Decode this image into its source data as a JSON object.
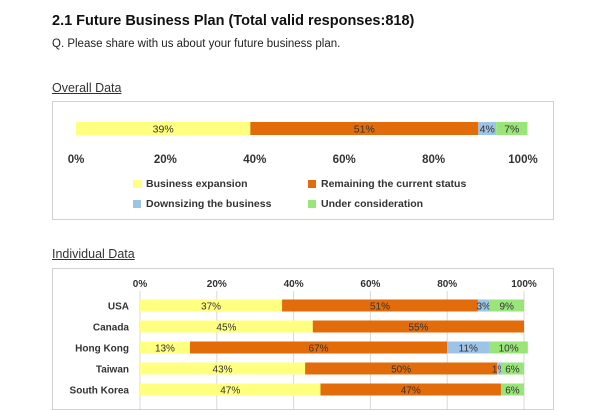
{
  "header": {
    "title": "2.1  Future Business Plan (Total valid responses:818)",
    "question": "Q. Please share with us about your future business plan."
  },
  "sections": {
    "overall": "Overall Data",
    "individual": "Individual Data"
  },
  "colors": {
    "business_expansion": "#FFFF80",
    "remaining_current_status": "#E26B0A",
    "downsizing": "#9DC3E6",
    "under_consideration": "#99E57A"
  },
  "chart_data": [
    {
      "type": "bar",
      "orientation": "horizontal",
      "stacked": true,
      "categories": [
        "Overall"
      ],
      "series": [
        {
          "name": "Business expansion",
          "values": [
            39
          ]
        },
        {
          "name": "Remaining the current status",
          "values": [
            51
          ]
        },
        {
          "name": "Downsizing the business",
          "values": [
            4
          ]
        },
        {
          "name": "Under consideration",
          "values": [
            7
          ]
        }
      ],
      "data_labels": [
        [
          "39%",
          "51%",
          "4%",
          "7%"
        ]
      ],
      "xlim": [
        0,
        100
      ],
      "xticks": [
        "0%",
        "20%",
        "40%",
        "60%",
        "80%",
        "100%"
      ],
      "legend": "bottom",
      "grid": false
    },
    {
      "type": "bar",
      "orientation": "horizontal",
      "stacked": true,
      "categories": [
        "USA",
        "Canada",
        "Hong Kong",
        "Taiwan",
        "South Korea"
      ],
      "series": [
        {
          "name": "Business expansion",
          "values": [
            37,
            45,
            13,
            43,
            47
          ]
        },
        {
          "name": "Remaining the current status",
          "values": [
            51,
            55,
            67,
            50,
            47
          ]
        },
        {
          "name": "Downsizing the business",
          "values": [
            3,
            0,
            11,
            1,
            0
          ]
        },
        {
          "name": "Under consideration",
          "values": [
            9,
            0,
            10,
            6,
            6
          ]
        }
      ],
      "data_labels": [
        [
          "37%",
          "51%",
          "3%",
          "9%"
        ],
        [
          "45%",
          "55%",
          "",
          ""
        ],
        [
          "13%",
          "67%",
          "11%",
          "10%"
        ],
        [
          "43%",
          "50%",
          "1%",
          "6%"
        ],
        [
          "47%",
          "47%",
          "",
          "6%"
        ]
      ],
      "xlim": [
        0,
        100
      ],
      "xticks": [
        "0%",
        "20%",
        "40%",
        "60%",
        "80%",
        "100%"
      ],
      "grid": true
    }
  ]
}
